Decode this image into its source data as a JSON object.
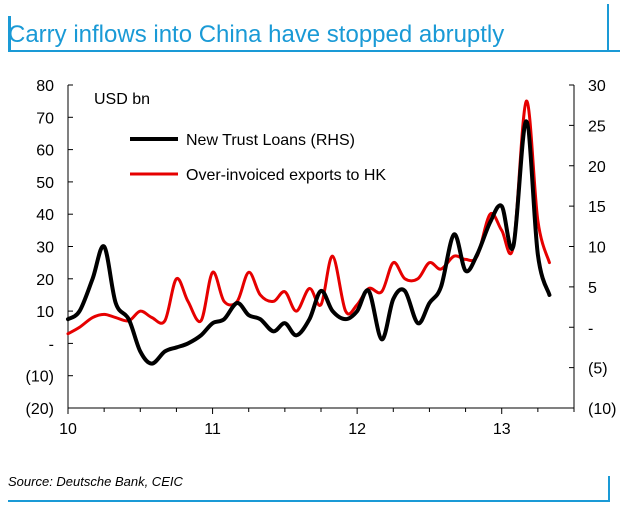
{
  "header": {
    "title": "Carry inflows into China have stopped abruptly"
  },
  "footer": {
    "source": "Source: Deutsche Bank, CEIC"
  },
  "colors": {
    "accent": "#1a9ad6",
    "trust_line": "#000000",
    "export_line": "#e60000"
  },
  "chart_data": {
    "type": "line",
    "title": "Carry inflows into China have stopped abruptly",
    "unit_label": "USD bn",
    "xlabel": "",
    "ylabel_left": "",
    "ylabel_right": "",
    "x_range": [
      2010.0,
      2013.5
    ],
    "ylim_left": [
      -20,
      80
    ],
    "ylim_right": [
      -10,
      30
    ],
    "x_tick_values": [
      2010,
      2011,
      2012,
      2013
    ],
    "x_tick_labels": [
      "10",
      "11",
      "12",
      "13"
    ],
    "left_tick_values": [
      80,
      70,
      60,
      50,
      40,
      30,
      20,
      10,
      0,
      -10,
      -20
    ],
    "left_tick_labels": [
      "80",
      "70",
      "60",
      "50",
      "40",
      "30",
      "20",
      "10",
      "-",
      "(10)",
      "(20)"
    ],
    "right_tick_values": [
      30,
      25,
      20,
      15,
      10,
      5,
      0,
      -5,
      -10
    ],
    "right_tick_labels": [
      "30",
      "25",
      "20",
      "15",
      "10",
      "5",
      "-",
      "(5)",
      "(10)"
    ],
    "legend_position": "top-left",
    "series": [
      {
        "name": "New Trust Loans (RHS)",
        "axis": "right",
        "color": "#000000",
        "x": [
          2010.0,
          2010.08,
          2010.17,
          2010.25,
          2010.33,
          2010.42,
          2010.5,
          2010.58,
          2010.67,
          2010.75,
          2010.83,
          2010.92,
          2011.0,
          2011.08,
          2011.17,
          2011.25,
          2011.33,
          2011.42,
          2011.5,
          2011.58,
          2011.67,
          2011.75,
          2011.83,
          2011.92,
          2012.0,
          2012.08,
          2012.17,
          2012.25,
          2012.33,
          2012.42,
          2012.5,
          2012.58,
          2012.67,
          2012.75,
          2012.83,
          2012.92,
          2013.0,
          2013.08,
          2013.17,
          2013.25,
          2013.33
        ],
        "y": [
          1.0,
          2.0,
          6.0,
          10.0,
          3.0,
          1.0,
          -3.0,
          -4.5,
          -3.0,
          -2.5,
          -2.0,
          -1.0,
          0.5,
          1.0,
          3.0,
          1.5,
          1.0,
          -0.5,
          0.5,
          -1.0,
          1.0,
          4.5,
          2.0,
          1.0,
          2.0,
          4.5,
          -1.5,
          3.5,
          4.5,
          0.5,
          3.0,
          5.0,
          11.5,
          7.0,
          9.0,
          13.0,
          15.0,
          10.0,
          25.5,
          9.0,
          4.0
        ]
      },
      {
        "name": "Over-invoiced exports to HK",
        "axis": "left",
        "color": "#e60000",
        "x": [
          2010.0,
          2010.08,
          2010.17,
          2010.25,
          2010.33,
          2010.42,
          2010.5,
          2010.58,
          2010.67,
          2010.75,
          2010.83,
          2010.92,
          2011.0,
          2011.08,
          2011.17,
          2011.25,
          2011.33,
          2011.42,
          2011.5,
          2011.58,
          2011.67,
          2011.75,
          2011.83,
          2011.92,
          2012.0,
          2012.08,
          2012.17,
          2012.25,
          2012.33,
          2012.42,
          2012.5,
          2012.58,
          2012.67,
          2012.75,
          2012.83,
          2012.92,
          2013.0,
          2013.08,
          2013.17,
          2013.25,
          2013.33
        ],
        "y": [
          3,
          5,
          8,
          9,
          8,
          7,
          10,
          8,
          7,
          20,
          13,
          7,
          22,
          13,
          13,
          22,
          15,
          13,
          16,
          10,
          17,
          12,
          27,
          10,
          12,
          17,
          16,
          25,
          20,
          20,
          25,
          23,
          27,
          26,
          27,
          40,
          35,
          30,
          75,
          38,
          25
        ]
      }
    ]
  }
}
